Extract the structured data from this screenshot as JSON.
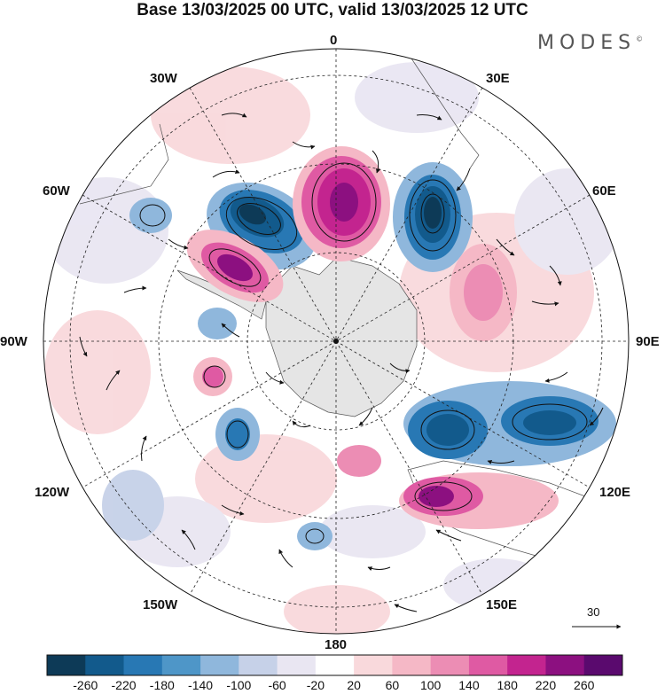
{
  "title": "Base 13/03/2025 00 UTC, valid 13/03/2025 12 UTC",
  "brand": "MODES",
  "brand_mark": "©",
  "projection": "polar-stereographic-south",
  "longitude_labels": {
    "top": "0",
    "top_right": "30E",
    "upper_right": "60E",
    "right": "90E",
    "lower_right": "120E",
    "bottom_right": "150E",
    "bottom": "180",
    "bottom_left": "150W",
    "lower_left": "120W",
    "left": "90W",
    "upper_left": "60W",
    "top_left": "30W"
  },
  "wind_reference": {
    "value": "30"
  },
  "colorbar": {
    "labels": [
      "-260",
      "-220",
      "-180",
      "-140",
      "-100",
      "-60",
      "-20",
      "20",
      "60",
      "100",
      "140",
      "180",
      "220",
      "260"
    ],
    "colors": [
      "#0d3a57",
      "#125a8c",
      "#2878b4",
      "#4e96c8",
      "#8fb7dc",
      "#c6d1e8",
      "#e9e6f2",
      "#ffffff",
      "#f9d9dc",
      "#f5b8c6",
      "#ec8db4",
      "#df5aa3",
      "#c3248f",
      "#8c1080",
      "#5a0a6e"
    ]
  },
  "field_colors": {
    "continent": "#e5e5e5",
    "neutral": "#f0f0f0"
  }
}
